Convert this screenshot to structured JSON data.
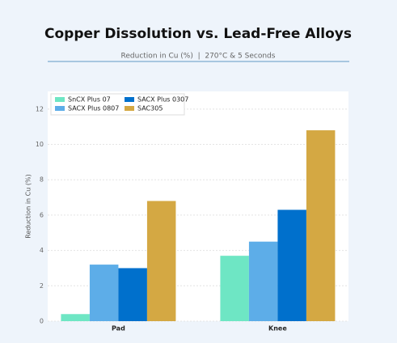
{
  "chart_data": {
    "type": "bar",
    "title": "Copper Dissolution vs. Lead-Free Alloys",
    "subtitle": "Reduction in Cu (%)  |  270°C & 5 Seconds",
    "y_label": "Reduction in Cu (%)",
    "categories": [
      "Pad",
      "Knee"
    ],
    "series": [
      {
        "name": "SnCX Plus 07",
        "color": "#6ee6c4",
        "values": [
          0.4,
          3.7
        ]
      },
      {
        "name": "SACX Plus 0807",
        "color": "#5dade8",
        "values": [
          3.2,
          4.5
        ]
      },
      {
        "name": "SACX Plus 0307",
        "color": "#0070cc",
        "values": [
          3.0,
          6.3
        ]
      },
      {
        "name": "SAC305",
        "color": "#d4a843",
        "values": [
          6.8,
          10.8
        ]
      }
    ],
    "ylim": [
      0,
      13
    ],
    "yticks": [
      0,
      2,
      4,
      6,
      8,
      10,
      12
    ],
    "grid": true,
    "legend": "upper left"
  }
}
